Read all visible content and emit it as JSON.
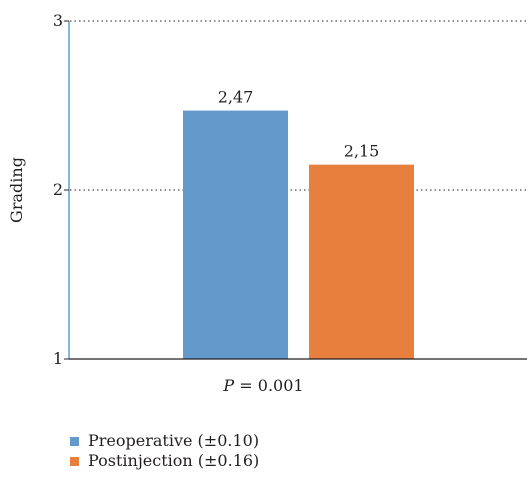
{
  "chart_data": {
    "type": "bar",
    "categories": [
      "Preoperative (±0.10)",
      "Postinjection (±0.16)"
    ],
    "values": [
      2.47,
      2.15
    ],
    "value_labels": [
      "2,47",
      "2,15"
    ],
    "colors": [
      "#6499cb",
      "#e8803d"
    ],
    "ylabel": "Grading",
    "ylim": [
      1,
      3
    ],
    "yticks": [
      "1",
      "2",
      "3"
    ],
    "grid": "dotted horizontal",
    "legend_position": "bottom-left",
    "annotation": {
      "p_symbol": "P",
      "p_text": " = 0.001"
    }
  }
}
